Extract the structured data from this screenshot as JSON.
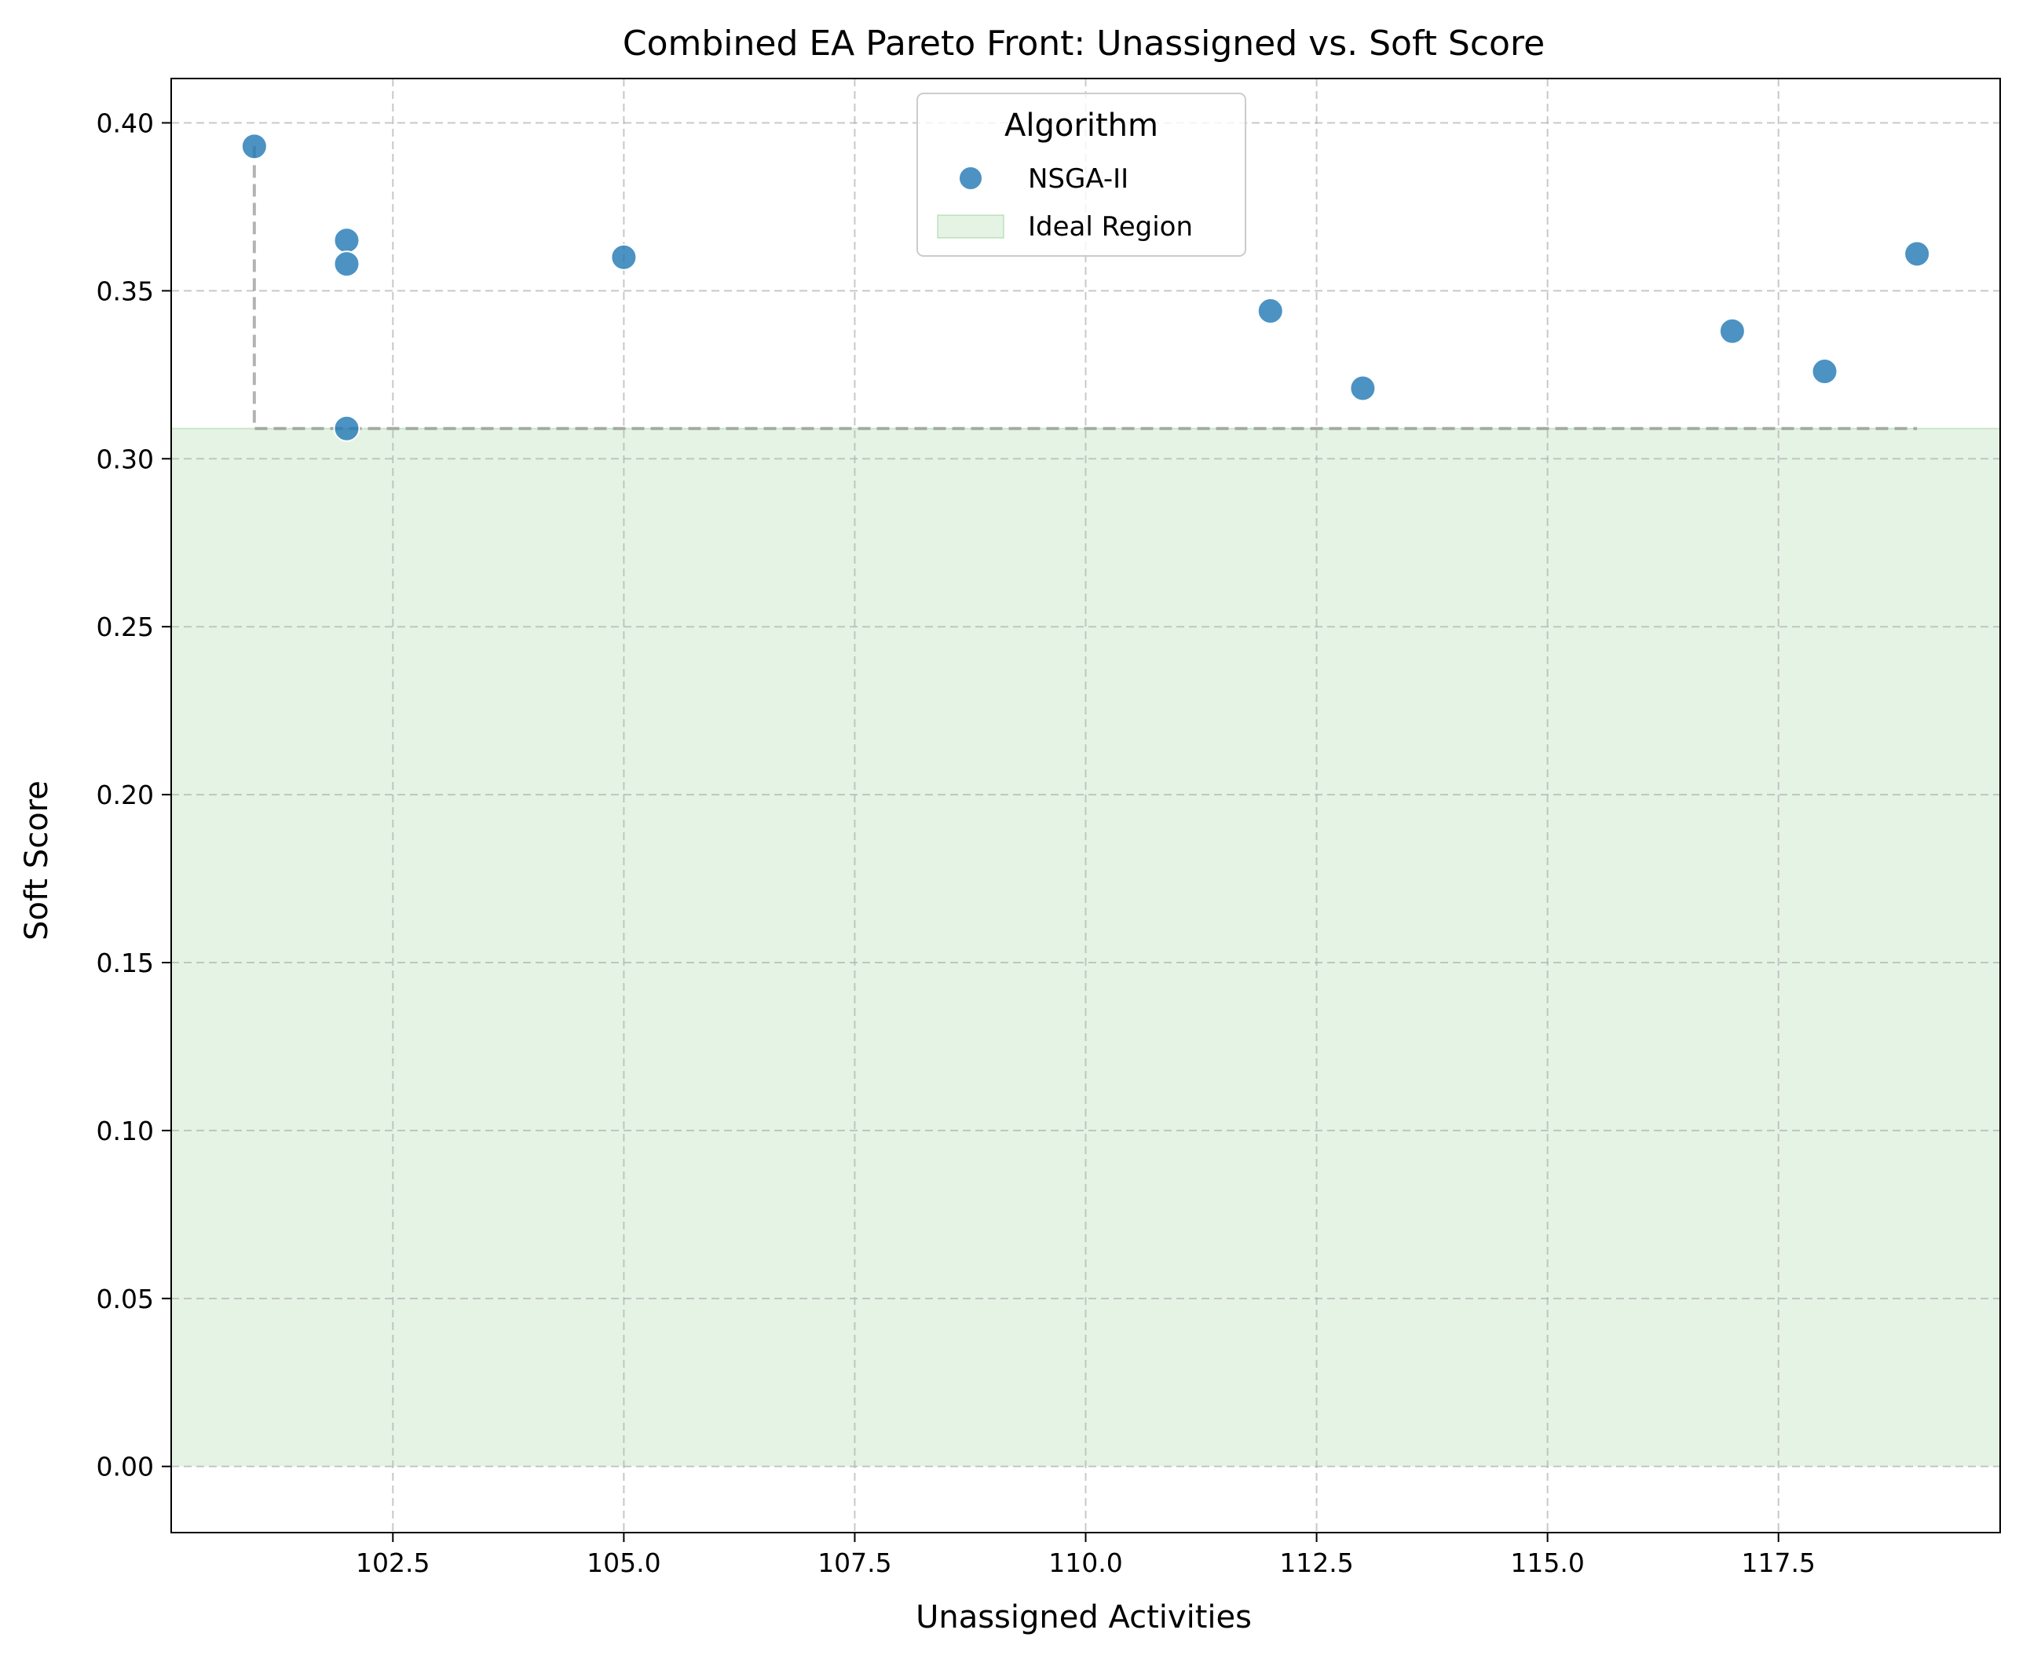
{
  "chart_data": {
    "type": "scatter",
    "title": "Combined EA Pareto Front: Unassigned vs. Soft Score",
    "xlabel": "Unassigned Activities",
    "ylabel": "Soft Score",
    "xlim": [
      100.1,
      119.9
    ],
    "ylim": [
      -0.0197,
      0.4132
    ],
    "xticks": [
      102.5,
      105.0,
      107.5,
      110.0,
      112.5,
      115.0,
      117.5
    ],
    "xtick_labels": [
      "102.5",
      "105.0",
      "107.5",
      "110.0",
      "112.5",
      "115.0",
      "117.5"
    ],
    "yticks": [
      0.0,
      0.05,
      0.1,
      0.15,
      0.2,
      0.25,
      0.3,
      0.35,
      0.4
    ],
    "ytick_labels": [
      "0.00",
      "0.05",
      "0.10",
      "0.15",
      "0.20",
      "0.25",
      "0.30",
      "0.35",
      "0.40"
    ],
    "grid": true,
    "legend": {
      "title": "Algorithm",
      "placement": "upper center",
      "entries": [
        "NSGA-II",
        "Ideal Region"
      ]
    },
    "series": [
      {
        "name": "NSGA-II",
        "color": "#1f77b4",
        "points": [
          {
            "x": 101,
            "y": 0.393
          },
          {
            "x": 102,
            "y": 0.365
          },
          {
            "x": 102,
            "y": 0.358
          },
          {
            "x": 102,
            "y": 0.309
          },
          {
            "x": 105,
            "y": 0.36
          },
          {
            "x": 112,
            "y": 0.344
          },
          {
            "x": 113,
            "y": 0.321
          },
          {
            "x": 117,
            "y": 0.338
          },
          {
            "x": 118,
            "y": 0.326
          },
          {
            "x": 119,
            "y": 0.361
          }
        ]
      }
    ],
    "pareto_front": {
      "color": "#808080",
      "points": [
        {
          "x": 101,
          "y": 0.393
        },
        {
          "x": 101,
          "y": 0.309
        },
        {
          "x": 102,
          "y": 0.309
        },
        {
          "x": 119,
          "y": 0.309
        }
      ]
    },
    "ideal_region": {
      "name": "Ideal Region",
      "color": "#2ca02c",
      "y_min": 0.0,
      "y_max": 0.309
    }
  }
}
